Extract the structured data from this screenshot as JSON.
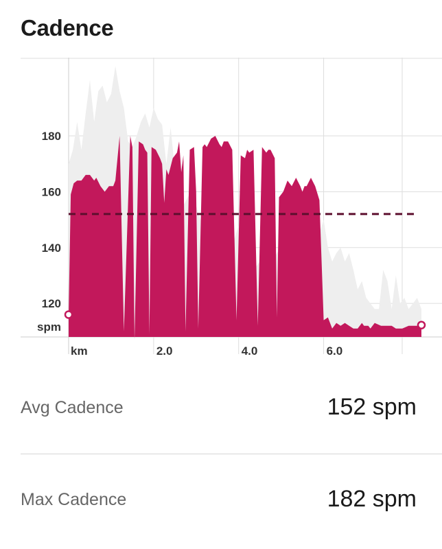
{
  "title": "Cadence",
  "colors": {
    "series_fill": "#c2185b",
    "background_fill": "#eeeeee",
    "average_line": "#5c0f2e"
  },
  "chart_data": {
    "type": "area",
    "ylabel": "spm",
    "xlabel": "km",
    "ylim": [
      108,
      208
    ],
    "xlim": [
      0,
      8.3
    ],
    "y_ticks": [
      "180",
      "160",
      "140",
      "120"
    ],
    "y_tick_values": [
      180,
      160,
      140,
      120
    ],
    "x_ticks": [
      "2.0",
      "4.0",
      "6.0"
    ],
    "x_tick_values": [
      2,
      4,
      6
    ],
    "grid": true,
    "average_line": 152,
    "series": [
      {
        "name": "Cadence",
        "x": [
          0,
          0.05,
          0.12,
          0.2,
          0.3,
          0.4,
          0.5,
          0.6,
          0.65,
          0.75,
          0.85,
          0.95,
          1.05,
          1.1,
          1.2,
          1.3,
          1.45,
          1.5,
          1.55,
          1.65,
          1.75,
          1.8,
          1.85,
          1.9,
          1.95,
          2.05,
          2.15,
          2.2,
          2.25,
          2.3,
          2.35,
          2.45,
          2.55,
          2.6,
          2.65,
          2.7,
          2.75,
          2.85,
          2.95,
          3.0,
          3.05,
          3.15,
          3.2,
          3.25,
          3.35,
          3.45,
          3.55,
          3.6,
          3.65,
          3.75,
          3.85,
          3.95,
          4.05,
          4.15,
          4.2,
          4.25,
          4.35,
          4.45,
          4.55,
          4.65,
          4.7,
          4.75,
          4.85,
          4.9,
          4.95,
          5.05,
          5.15,
          5.25,
          5.35,
          5.45,
          5.5,
          5.55,
          5.6,
          5.7,
          5.8,
          5.9,
          6.0,
          6.1,
          6.2,
          6.3,
          6.4,
          6.5,
          6.6,
          6.7,
          6.8,
          6.9,
          6.95,
          7.05,
          7.1,
          7.2,
          7.35,
          7.5,
          7.6,
          7.7,
          7.85,
          8.0,
          8.15,
          8.3
        ],
        "values": [
          116,
          159,
          163,
          164,
          164,
          166,
          166,
          164,
          165,
          162,
          160,
          162,
          162,
          164,
          180,
          110,
          180,
          176,
          107,
          178,
          177,
          175,
          174,
          109,
          176,
          175,
          172,
          170,
          156,
          168,
          166,
          172,
          174,
          178,
          167,
          173,
          110,
          175,
          176,
          160,
          111,
          176,
          177,
          176,
          179,
          180,
          177,
          176,
          178,
          178,
          175,
          114,
          173,
          172,
          175,
          174,
          175,
          112,
          176,
          174,
          175,
          175,
          172,
          115,
          158,
          160,
          164,
          162,
          165,
          162,
          160,
          162,
          162,
          165,
          162,
          157,
          114,
          115,
          111,
          113,
          112,
          113,
          112,
          111,
          111,
          113,
          112,
          112,
          111,
          113,
          112,
          112,
          112,
          111,
          111,
          112,
          112,
          112
        ]
      },
      {
        "name": "Background",
        "x": [
          0,
          0.1,
          0.2,
          0.3,
          0.4,
          0.5,
          0.6,
          0.7,
          0.8,
          0.9,
          1.0,
          1.1,
          1.2,
          1.3,
          1.4,
          1.5,
          1.6,
          1.7,
          1.8,
          1.9,
          2.0,
          2.1,
          2.2,
          2.3,
          2.4,
          2.5,
          2.6,
          2.7,
          2.8,
          2.9,
          3.0,
          3.1,
          3.2,
          3.3,
          3.4,
          3.5,
          3.6,
          3.7,
          3.8,
          3.9,
          4.0,
          4.1,
          4.2,
          4.3,
          4.4,
          4.5,
          4.6,
          4.7,
          4.8,
          4.9,
          5.0,
          5.1,
          5.2,
          5.3,
          5.4,
          5.5,
          5.6,
          5.7,
          5.8,
          5.9,
          6.0,
          6.1,
          6.2,
          6.3,
          6.4,
          6.5,
          6.6,
          6.7,
          6.8,
          6.9,
          7.0,
          7.1,
          7.2,
          7.3,
          7.4,
          7.5,
          7.6,
          7.7,
          7.8,
          7.9,
          8.0,
          8.1,
          8.2,
          8.3
        ],
        "values": [
          170,
          175,
          185,
          175,
          188,
          200,
          185,
          196,
          198,
          192,
          195,
          205,
          196,
          190,
          178,
          176,
          180,
          185,
          188,
          183,
          190,
          186,
          184,
          170,
          183,
          168,
          165,
          155,
          158,
          160,
          155,
          150,
          148,
          152,
          145,
          147,
          150,
          140,
          138,
          143,
          148,
          136,
          135,
          138,
          133,
          135,
          140,
          138,
          135,
          138,
          140,
          132,
          135,
          138,
          140,
          135,
          132,
          140,
          142,
          145,
          150,
          140,
          135,
          138,
          140,
          135,
          138,
          132,
          125,
          128,
          122,
          120,
          118,
          118,
          132,
          128,
          118,
          130,
          120,
          122,
          118,
          120,
          122,
          118
        ]
      }
    ]
  },
  "stats": {
    "avg": {
      "label": "Avg Cadence",
      "value": "152 spm"
    },
    "max": {
      "label": "Max Cadence",
      "value": "182 spm"
    }
  }
}
